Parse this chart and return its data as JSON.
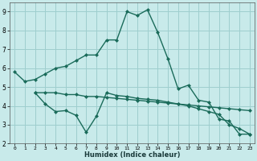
{
  "xlabel": "Humidex (Indice chaleur)",
  "background_color": "#c8eaea",
  "grid_color": "#9ecece",
  "line_color": "#1a6b5a",
  "ylim": [
    2,
    9.5
  ],
  "xlim": [
    -0.5,
    23.5
  ],
  "yticks": [
    2,
    3,
    4,
    5,
    6,
    7,
    8,
    9
  ],
  "xticks": [
    0,
    1,
    2,
    3,
    4,
    5,
    6,
    7,
    8,
    9,
    10,
    11,
    12,
    13,
    14,
    15,
    16,
    17,
    18,
    19,
    20,
    21,
    22,
    23
  ],
  "line1_x": [
    0,
    1,
    2,
    3,
    4,
    5,
    6,
    7,
    8,
    9,
    10,
    11,
    12,
    13,
    14,
    15,
    16,
    17,
    18,
    19,
    20,
    21,
    22,
    23
  ],
  "line1_y": [
    5.8,
    5.3,
    5.4,
    5.7,
    6.0,
    6.1,
    6.4,
    6.7,
    6.7,
    7.5,
    7.5,
    9.0,
    8.8,
    9.1,
    7.9,
    6.5,
    4.9,
    5.1,
    4.3,
    4.2,
    3.3,
    3.2,
    2.5,
    2.5
  ],
  "line2_x": [
    2,
    3,
    4,
    5,
    6,
    7,
    8,
    9,
    10,
    11,
    12,
    13,
    14,
    15,
    16,
    17,
    18,
    19,
    20,
    21,
    22,
    23
  ],
  "line2_y": [
    4.7,
    4.7,
    4.7,
    4.6,
    4.6,
    4.5,
    4.5,
    4.45,
    4.4,
    4.35,
    4.3,
    4.25,
    4.2,
    4.15,
    4.1,
    4.05,
    4.0,
    3.95,
    3.9,
    3.85,
    3.8,
    3.75
  ],
  "line3_x": [
    2,
    3,
    4,
    5,
    6,
    7,
    8,
    9,
    10,
    11,
    12,
    13,
    14,
    15,
    16,
    17,
    18,
    19,
    20,
    21,
    22,
    23
  ],
  "line3_y": [
    4.7,
    4.1,
    3.7,
    3.75,
    3.5,
    2.6,
    3.45,
    4.7,
    4.55,
    4.5,
    4.4,
    4.35,
    4.3,
    4.2,
    4.1,
    4.0,
    3.85,
    3.7,
    3.55,
    3.0,
    2.8,
    2.5
  ]
}
